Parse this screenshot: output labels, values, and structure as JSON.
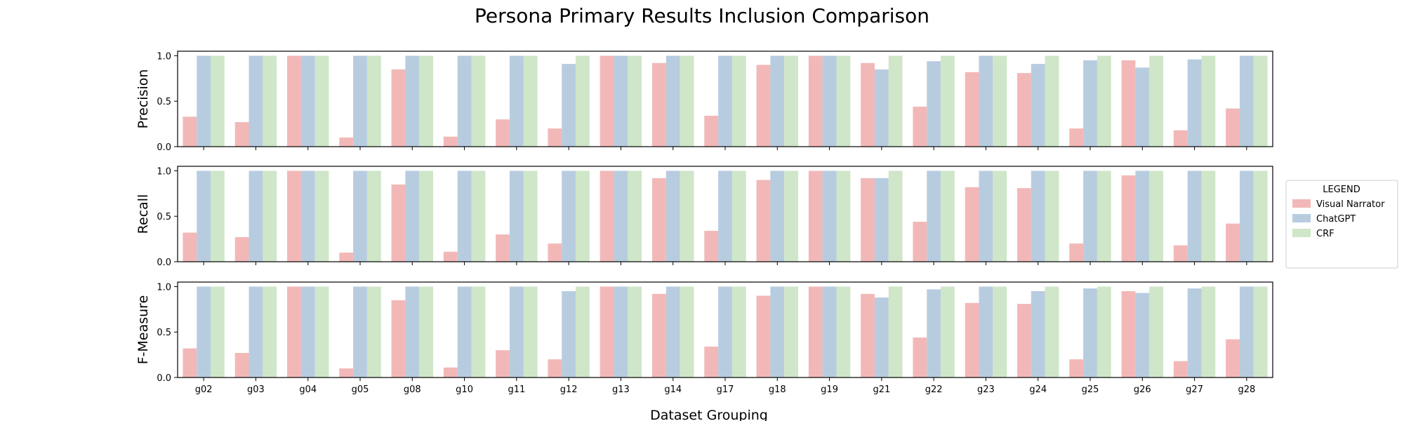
{
  "chart_data": {
    "type": "bar",
    "title": "Persona Primary Results Inclusion Comparison",
    "xlabel": "Dataset Grouping",
    "categories": [
      "g02",
      "g03",
      "g04",
      "g05",
      "g08",
      "g10",
      "g11",
      "g12",
      "g13",
      "g14",
      "g17",
      "g18",
      "g19",
      "g21",
      "g22",
      "g23",
      "g24",
      "g25",
      "g26",
      "g27",
      "g28"
    ],
    "ylim": [
      0,
      1.05
    ],
    "yticks": [
      "0.0",
      "0.5",
      "1.0"
    ],
    "grid": false,
    "legend": {
      "title": "LEGEND",
      "placement": "center-right outside",
      "entries": [
        "Visual Narrator",
        "ChatGPT",
        "CRF"
      ]
    },
    "colors": {
      "Visual Narrator": "#f2b8b7",
      "ChatGPT": "#b8cce0",
      "CRF": "#cfe6c8"
    },
    "panels": [
      {
        "ylabel": "Precision",
        "series": [
          {
            "name": "Visual Narrator",
            "values": [
              0.33,
              0.27,
              1.0,
              0.1,
              0.85,
              0.11,
              0.3,
              0.2,
              1.0,
              0.92,
              0.34,
              0.9,
              1.0,
              0.92,
              0.44,
              0.82,
              0.81,
              0.2,
              0.95,
              0.18,
              0.42
            ]
          },
          {
            "name": "ChatGPT",
            "values": [
              1.0,
              1.0,
              1.0,
              1.0,
              1.0,
              1.0,
              1.0,
              0.91,
              1.0,
              1.0,
              1.0,
              1.0,
              1.0,
              0.85,
              0.94,
              1.0,
              0.91,
              0.95,
              0.87,
              0.96,
              1.0
            ]
          },
          {
            "name": "CRF",
            "values": [
              1.0,
              1.0,
              1.0,
              1.0,
              1.0,
              1.0,
              1.0,
              1.0,
              1.0,
              1.0,
              1.0,
              1.0,
              1.0,
              1.0,
              1.0,
              1.0,
              1.0,
              1.0,
              1.0,
              1.0,
              1.0
            ]
          }
        ]
      },
      {
        "ylabel": "Recall",
        "series": [
          {
            "name": "Visual Narrator",
            "values": [
              0.32,
              0.27,
              1.0,
              0.1,
              0.85,
              0.11,
              0.3,
              0.2,
              1.0,
              0.92,
              0.34,
              0.9,
              1.0,
              0.92,
              0.44,
              0.82,
              0.81,
              0.2,
              0.95,
              0.18,
              0.42
            ]
          },
          {
            "name": "ChatGPT",
            "values": [
              1.0,
              1.0,
              1.0,
              1.0,
              1.0,
              1.0,
              1.0,
              1.0,
              1.0,
              1.0,
              1.0,
              1.0,
              1.0,
              0.92,
              1.0,
              1.0,
              1.0,
              1.0,
              1.0,
              1.0,
              1.0
            ]
          },
          {
            "name": "CRF",
            "values": [
              1.0,
              1.0,
              1.0,
              1.0,
              1.0,
              1.0,
              1.0,
              1.0,
              1.0,
              1.0,
              1.0,
              1.0,
              1.0,
              1.0,
              1.0,
              1.0,
              1.0,
              1.0,
              1.0,
              1.0,
              1.0
            ]
          }
        ]
      },
      {
        "ylabel": "F-Measure",
        "series": [
          {
            "name": "Visual Narrator",
            "values": [
              0.32,
              0.27,
              1.0,
              0.1,
              0.85,
              0.11,
              0.3,
              0.2,
              1.0,
              0.92,
              0.34,
              0.9,
              1.0,
              0.92,
              0.44,
              0.82,
              0.81,
              0.2,
              0.95,
              0.18,
              0.42
            ]
          },
          {
            "name": "ChatGPT",
            "values": [
              1.0,
              1.0,
              1.0,
              1.0,
              1.0,
              1.0,
              1.0,
              0.95,
              1.0,
              1.0,
              1.0,
              1.0,
              1.0,
              0.88,
              0.97,
              1.0,
              0.95,
              0.98,
              0.93,
              0.98,
              1.0
            ]
          },
          {
            "name": "CRF",
            "values": [
              1.0,
              1.0,
              1.0,
              1.0,
              1.0,
              1.0,
              1.0,
              1.0,
              1.0,
              1.0,
              1.0,
              1.0,
              1.0,
              1.0,
              1.0,
              1.0,
              1.0,
              1.0,
              1.0,
              1.0,
              1.0
            ]
          }
        ]
      }
    ]
  }
}
